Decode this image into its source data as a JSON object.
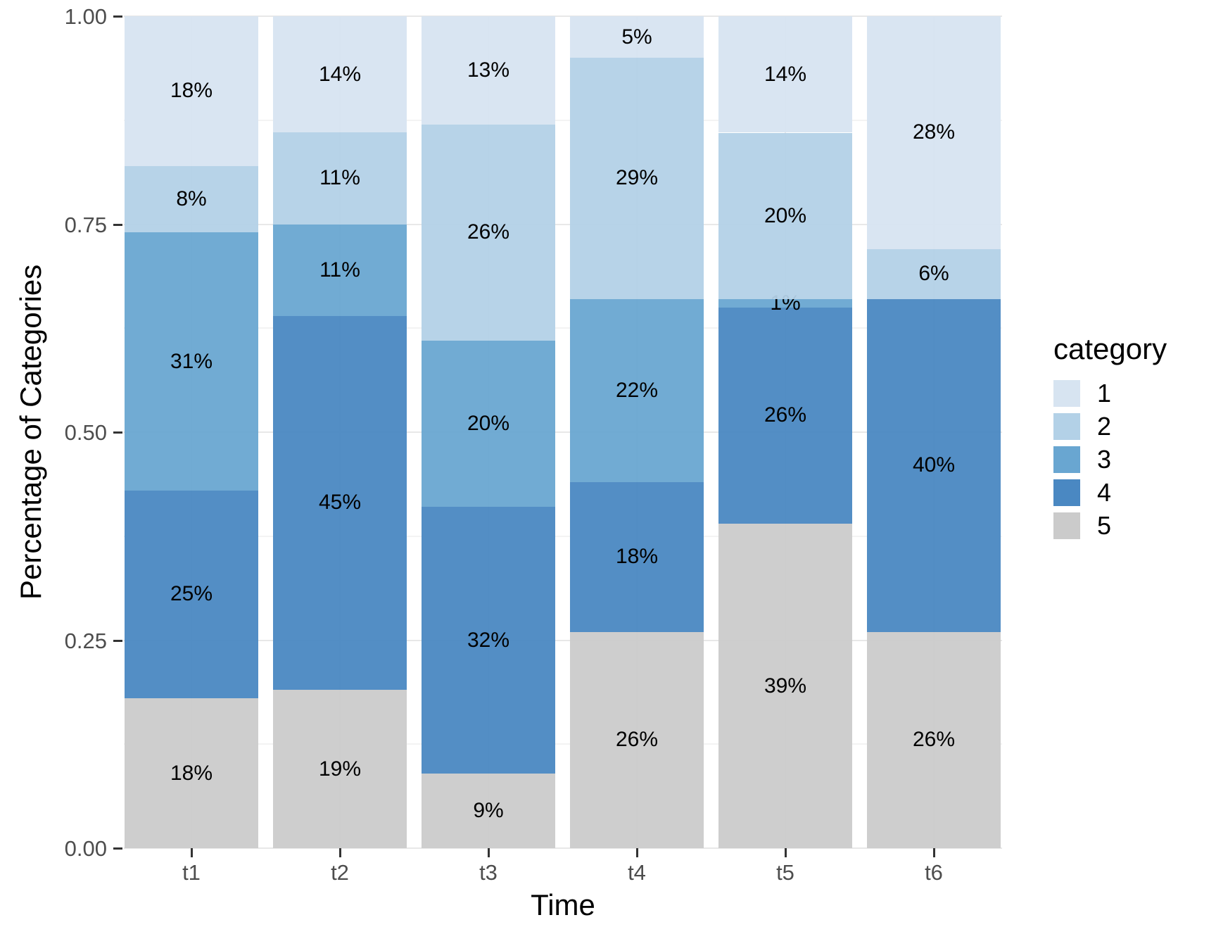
{
  "chart_data": {
    "type": "bar",
    "variant": "stacked-percent",
    "title": "",
    "xlabel": "Time",
    "ylabel": "Percentage of Categories",
    "legend_title": "category",
    "legend_position": "right",
    "grid": "major and minor horizontal gridlines, vertical gridline at each bar center",
    "categories": [
      "t1",
      "t2",
      "t3",
      "t4",
      "t5",
      "t6"
    ],
    "ylim": [
      0,
      1
    ],
    "yticks": [
      0,
      0.25,
      0.5,
      0.75,
      1
    ],
    "ytick_labels": [
      "0.00",
      "0.25",
      "0.50",
      "0.75",
      "1.00"
    ],
    "minor_yticks": [
      0.125,
      0.375,
      0.625,
      0.875
    ],
    "stack_order_bottom_to_top": [
      "5",
      "4",
      "3",
      "2",
      "1"
    ],
    "series": [
      {
        "name": "1",
        "color": "#D7E4F1",
        "values": [
          0.18,
          0.14,
          0.13,
          0.05,
          0.14,
          0.28
        ],
        "labels": [
          "18%",
          "14%",
          "13%",
          "5%",
          "14%",
          "28%"
        ]
      },
      {
        "name": "2",
        "color": "#B3D1E7",
        "values": [
          0.08,
          0.11,
          0.26,
          0.29,
          0.2,
          0.06
        ],
        "labels": [
          "8%",
          "11%",
          "26%",
          "29%",
          "20%",
          "6%"
        ]
      },
      {
        "name": "3",
        "color": "#69A6D1",
        "values": [
          0.31,
          0.11,
          0.2,
          0.22,
          0.01,
          0.0
        ],
        "labels": [
          "31%",
          "11%",
          "20%",
          "22%",
          "1%",
          ""
        ]
      },
      {
        "name": "4",
        "color": "#4A88C2",
        "values": [
          0.25,
          0.45,
          0.32,
          0.18,
          0.26,
          0.4
        ],
        "labels": [
          "25%",
          "45%",
          "32%",
          "18%",
          "26%",
          "40%"
        ]
      },
      {
        "name": "5",
        "color": "#CBCBCB",
        "values": [
          0.18,
          0.19,
          0.09,
          0.26,
          0.39,
          0.26
        ],
        "labels": [
          "18%",
          "19%",
          "9%",
          "26%",
          "39%",
          "26%"
        ]
      }
    ]
  }
}
